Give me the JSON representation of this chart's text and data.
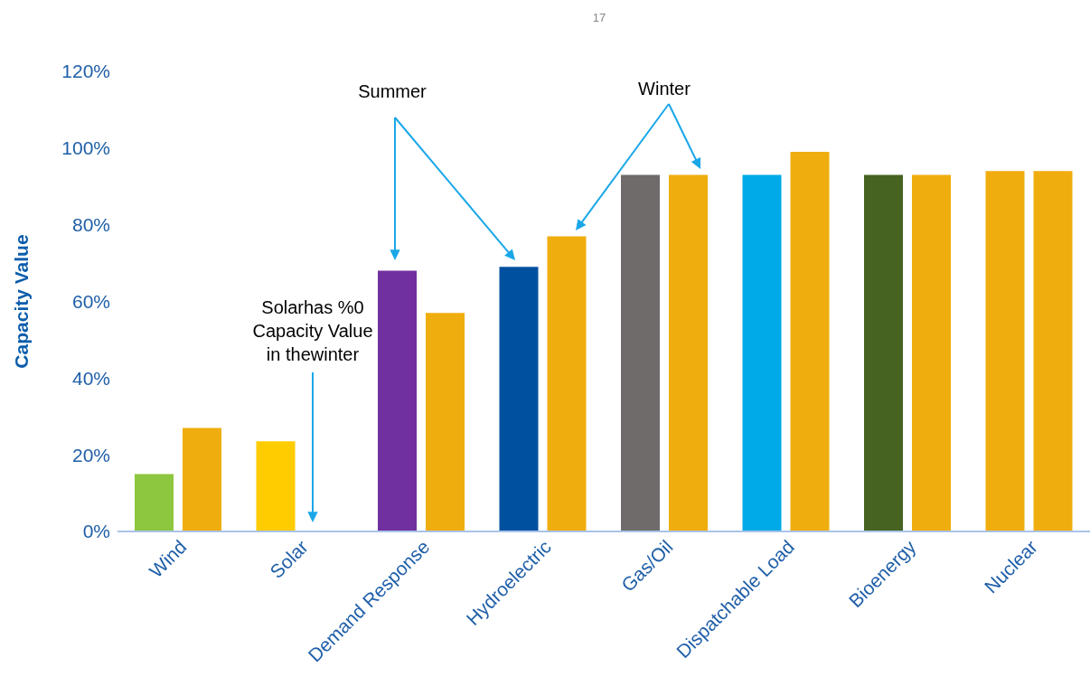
{
  "chart_data": {
    "type": "bar",
    "ylabel": "Capacity Value",
    "categories": [
      "Wind",
      "Solar",
      "Demand Response",
      "Hydroelectric",
      "Gas/Oil",
      "Dispatchable Load",
      "Bioenergy",
      "Nuclear"
    ],
    "series": [
      {
        "colors": [
          "#8dc63f",
          "#ffcc00",
          "#7030a0",
          "#0050a0",
          "#6f6b6a",
          "#00a9e8",
          "#466321",
          "#f0ad0e"
        ],
        "values": [
          15,
          23.5,
          68,
          69,
          93,
          93,
          93,
          94
        ]
      },
      {
        "color": "#f0ad0e",
        "values": [
          27,
          0,
          57,
          77,
          93,
          99,
          93,
          94
        ]
      }
    ],
    "ylim": [
      0,
      120
    ],
    "yticks": [
      {
        "value": 0,
        "label": "0%"
      },
      {
        "value": 20,
        "label": "20%"
      },
      {
        "value": 40,
        "label": "40%"
      },
      {
        "value": 60,
        "label": "60%"
      },
      {
        "value": 80,
        "label": "80%"
      },
      {
        "value": 100,
        "label": "100%"
      },
      {
        "value": 120,
        "label": "120%"
      }
    ],
    "annotations": [
      "17",
      "Summer",
      "Winter",
      "Solarhas %0\nCapacity Value\nin thewinter"
    ]
  }
}
